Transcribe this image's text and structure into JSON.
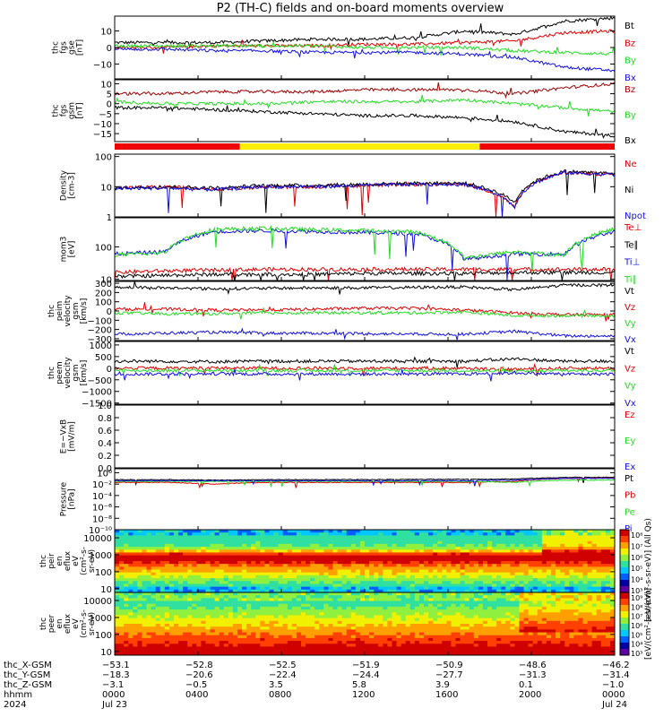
{
  "title": "P2 (TH-C) fields and on-board moments overview",
  "colors": {
    "black": "#000000",
    "red": "#e00000",
    "green": "#22dd22",
    "blue": "#1010e0",
    "darkred": "#a00000",
    "yellow": "#ffee00",
    "barred": "#ee0000"
  },
  "chart_data": [
    {
      "type": "line",
      "ylabel": [
        "thc",
        "fgs",
        "gse",
        "[nT]"
      ],
      "yticks": [
        {
          "value": 10,
          "label": "10"
        },
        {
          "value": 0,
          "label": "0"
        },
        {
          "value": -10,
          "label": "−10"
        }
      ],
      "ylim": [
        -19,
        19
      ],
      "series": [
        {
          "name": "Bt",
          "color": "black",
          "values": [
            3,
            3,
            3,
            4,
            5,
            5,
            6,
            10,
            8,
            16,
            18
          ]
        },
        {
          "name": "Bz",
          "color": "red",
          "values": [
            0,
            0,
            1,
            1,
            1,
            2,
            2,
            3,
            4,
            9,
            10
          ]
        },
        {
          "name": "By",
          "color": "green",
          "values": [
            1,
            1,
            1,
            1,
            1,
            0,
            0,
            0,
            -2,
            -3,
            -4
          ]
        },
        {
          "name": "Bx",
          "color": "blue",
          "values": [
            -1,
            -1,
            -2,
            -2,
            -3,
            -3,
            -3,
            -4,
            -6,
            -12,
            -14
          ]
        }
      ]
    },
    {
      "type": "line",
      "ylabel": [
        "thc",
        "fgs",
        "gsm",
        "[nT]"
      ],
      "yticks": [
        {
          "value": 10,
          "label": "10"
        },
        {
          "value": 5,
          "label": "5"
        },
        {
          "value": 0,
          "label": "0"
        },
        {
          "value": -5,
          "label": "−5"
        },
        {
          "value": -10,
          "label": "−10"
        },
        {
          "value": -15,
          "label": "−15"
        }
      ],
      "ylim": [
        -19,
        12
      ],
      "series": [
        {
          "name": "Bz",
          "color": "darkred",
          "values": [
            5,
            5,
            6,
            6,
            6,
            7,
            7,
            7,
            5,
            8,
            10
          ]
        },
        {
          "name": "By",
          "color": "green",
          "values": [
            1,
            0,
            0,
            0,
            1,
            1,
            1,
            2,
            0,
            -2,
            -4
          ]
        },
        {
          "name": "Bx",
          "color": "black",
          "values": [
            -2,
            -2,
            -3,
            -4,
            -5,
            -6,
            -6,
            -7,
            -9,
            -14,
            -16
          ]
        }
      ]
    },
    {
      "type": "line",
      "scale": "log",
      "ylabel": [
        "Density",
        "[cm-3]"
      ],
      "yticks": [
        {
          "value": 100,
          "label": "100"
        },
        {
          "value": 10,
          "label": "10"
        },
        {
          "value": 1,
          "label": "1"
        }
      ],
      "ylim": [
        1,
        120
      ],
      "series": [
        {
          "name": "Ne",
          "color": "red",
          "values": [
            9,
            10,
            8,
            10,
            10,
            11,
            12,
            12,
            2,
            30,
            25
          ]
        },
        {
          "name": "Ni",
          "color": "black",
          "values": [
            9,
            10,
            9,
            11,
            11,
            12,
            13,
            13,
            3,
            32,
            27
          ]
        },
        {
          "name": "Npot",
          "color": "blue",
          "values": [
            9,
            9,
            8,
            10,
            10,
            11,
            12,
            12,
            2,
            29,
            25
          ]
        }
      ]
    },
    {
      "type": "line",
      "scale": "log",
      "ylabel": [
        "mom3",
        "[eV]"
      ],
      "yticks": [
        {
          "value": 100,
          "label": "100"
        },
        {
          "value": 10,
          "label": "10"
        }
      ],
      "ylim": [
        9,
        800
      ],
      "series": [
        {
          "name": "Te⊥",
          "color": "red",
          "values": [
            16,
            18,
            19,
            20,
            20,
            20,
            20,
            20,
            20,
            20,
            20
          ]
        },
        {
          "name": "Te∥",
          "color": "black",
          "values": [
            12,
            13,
            14,
            14,
            14,
            15,
            15,
            15,
            16,
            16,
            16
          ]
        },
        {
          "name": "Ti⊥",
          "color": "blue",
          "values": [
            60,
            70,
            300,
            320,
            300,
            280,
            260,
            40,
            60,
            60,
            300
          ]
        },
        {
          "name": "Ti∥",
          "color": "green",
          "values": [
            55,
            65,
            350,
            380,
            340,
            320,
            290,
            45,
            70,
            55,
            360
          ]
        }
      ]
    },
    {
      "type": "line",
      "ylabel": [
        "thc",
        "peim",
        "velocity",
        "gsm",
        "[km/s]"
      ],
      "yticks": [
        {
          "value": 300,
          "label": "300"
        },
        {
          "value": 200,
          "label": "200"
        },
        {
          "value": 100,
          "label": "100"
        },
        {
          "value": 0,
          "label": "0"
        },
        {
          "value": -100,
          "label": "−100"
        },
        {
          "value": -200,
          "label": "−200"
        },
        {
          "value": -300,
          "label": "−300"
        }
      ],
      "ylim": [
        -320,
        320
      ],
      "series": [
        {
          "name": "Vt",
          "color": "black",
          "values": [
            260,
            250,
            240,
            245,
            250,
            250,
            255,
            260,
            230,
            280,
            280
          ]
        },
        {
          "name": "Vz",
          "color": "red",
          "values": [
            20,
            20,
            10,
            10,
            20,
            30,
            30,
            10,
            -20,
            -40,
            -40
          ]
        },
        {
          "name": "Vy",
          "color": "green",
          "values": [
            -20,
            -30,
            -30,
            -20,
            -20,
            -20,
            -20,
            -10,
            -50,
            -50,
            -50
          ]
        },
        {
          "name": "Vx",
          "color": "blue",
          "values": [
            -250,
            -240,
            -230,
            -240,
            -240,
            -245,
            -250,
            -250,
            -220,
            -270,
            -270
          ]
        }
      ]
    },
    {
      "type": "line",
      "ylabel": [
        "thc",
        "peem",
        "velocity",
        "gsm",
        "[km/s]"
      ],
      "yticks": [
        {
          "value": 1000,
          "label": "1000"
        },
        {
          "value": 500,
          "label": "500"
        },
        {
          "value": 0,
          "label": "0"
        },
        {
          "value": -500,
          "label": "−500"
        },
        {
          "value": -1000,
          "label": "−1000"
        },
        {
          "value": -1500,
          "label": "−1500"
        }
      ],
      "ylim": [
        -1550,
        1150
      ],
      "series": [
        {
          "name": "Vt",
          "color": "black",
          "values": [
            300,
            300,
            280,
            300,
            300,
            300,
            300,
            300,
            400,
            300,
            300
          ]
        },
        {
          "name": "Vz",
          "color": "red",
          "values": [
            0,
            0,
            10,
            0,
            0,
            0,
            0,
            0,
            -50,
            0,
            0
          ]
        },
        {
          "name": "Vy",
          "color": "green",
          "values": [
            -100,
            -100,
            -100,
            -100,
            -100,
            -100,
            -100,
            -100,
            -150,
            -100,
            -100
          ]
        },
        {
          "name": "Vx",
          "color": "blue",
          "values": [
            -250,
            -250,
            -240,
            -250,
            -250,
            -250,
            -250,
            -250,
            -200,
            -250,
            -250
          ]
        }
      ]
    },
    {
      "type": "line",
      "ylabel": [
        "E=−VxB",
        "[mV/m]"
      ],
      "yticks": [
        {
          "value": 1.0,
          "label": "1.0"
        },
        {
          "value": 0.8,
          "label": "0.8"
        },
        {
          "value": 0.6,
          "label": "0.6"
        },
        {
          "value": 0.4,
          "label": "0.4"
        },
        {
          "value": 0.2,
          "label": "0.2"
        },
        {
          "value": 0.0,
          "label": "0.0"
        }
      ],
      "ylim": [
        0,
        1
      ],
      "series": [
        {
          "name": "Ez",
          "color": "red",
          "values": []
        },
        {
          "name": "Ey",
          "color": "green",
          "values": []
        },
        {
          "name": "Ex",
          "color": "blue",
          "values": []
        }
      ]
    },
    {
      "type": "line",
      "scale": "log",
      "ylabel": [
        "Pressure",
        "[nPa]"
      ],
      "yticks": [
        {
          "value": 1,
          "label": "10⁰"
        },
        {
          "value": 0.01,
          "label": "10⁻²"
        },
        {
          "value": 0.0001,
          "label": "10⁻⁴"
        },
        {
          "value": 1e-06,
          "label": "10⁻⁶"
        },
        {
          "value": 1e-08,
          "label": "10⁻⁸"
        },
        {
          "value": 1e-10,
          "label": "10⁻¹⁰"
        }
      ],
      "ylim": [
        1e-10,
        5
      ],
      "series": [
        {
          "name": "Pt",
          "color": "black",
          "values": [
            0.06,
            0.06,
            0.05,
            0.06,
            0.06,
            0.06,
            0.07,
            0.07,
            0.08,
            0.15,
            0.16
          ]
        },
        {
          "name": "Pb",
          "color": "red",
          "values": [
            0.02,
            0.02,
            0.01,
            0.02,
            0.02,
            0.02,
            0.02,
            0.02,
            0.03,
            0.1,
            0.12
          ]
        },
        {
          "name": "Pe",
          "color": "green",
          "values": [
            0.03,
            0.03,
            0.03,
            0.03,
            0.03,
            0.03,
            0.03,
            0.03,
            0.02,
            0.05,
            0.05
          ]
        },
        {
          "name": "Pi",
          "color": "blue",
          "values": [
            0.04,
            0.04,
            0.04,
            0.04,
            0.04,
            0.04,
            0.04,
            0.04,
            0.05,
            0.1,
            0.1
          ]
        }
      ]
    },
    {
      "type": "heatmap",
      "ylabel": [
        "thc",
        "peir",
        "en",
        "eflux",
        "eV",
        "(cm²-s-",
        "sr-eV)"
      ],
      "yticks": [
        {
          "value": 10000,
          "label": "10000"
        },
        {
          "value": 1000,
          "label": "1000"
        },
        {
          "value": 100,
          "label": "100"
        },
        {
          "value": 10,
          "label": "10"
        }
      ],
      "ylim": [
        6,
        30000
      ],
      "colorbar_label": "[eV/(cm²-s-sr-eV)] (All Qs)",
      "colorbar_ticks": [
        "10⁸",
        "10⁷",
        "10⁶",
        "10⁵",
        "10⁴",
        "10³"
      ]
    },
    {
      "type": "heatmap",
      "ylabel": [
        "thc",
        "peer",
        "en",
        "eflux",
        "eV",
        "(cm²-s-",
        "sr-eV)"
      ],
      "yticks": [
        {
          "value": 10000,
          "label": "10000"
        },
        {
          "value": 1000,
          "label": "1000"
        },
        {
          "value": 100,
          "label": "100"
        },
        {
          "value": 10,
          "label": "10"
        }
      ],
      "ylim": [
        6,
        30000
      ],
      "colorbar_label": "[eV/(cm²-s-sr-eV)]",
      "colorbar_ticks": [
        "10⁹",
        "10⁸",
        "10⁷",
        "10⁶",
        "10⁵",
        "10⁴",
        "10³"
      ]
    }
  ],
  "mode_bar": [
    {
      "start": 0,
      "end": 0.25,
      "color": "barred"
    },
    {
      "start": 0.25,
      "end": 0.73,
      "color": "yellow"
    },
    {
      "start": 0.73,
      "end": 1.0,
      "color": "barred"
    }
  ],
  "time_axis": {
    "row_labels": [
      "thc_X-GSM",
      "thc_Y-GSM",
      "thc_Z-GSM",
      "hhmm",
      "2024"
    ],
    "columns": [
      {
        "pos": 0.0,
        "values": [
          "−53.1",
          "−18.3",
          "−3.1",
          "0000",
          "Jul 23"
        ]
      },
      {
        "pos": 0.1667,
        "values": [
          "−52.8",
          "−20.6",
          "−0.5",
          "0400",
          ""
        ]
      },
      {
        "pos": 0.3333,
        "values": [
          "−52.5",
          "−22.4",
          "3.5",
          "0800",
          ""
        ]
      },
      {
        "pos": 0.5,
        "values": [
          "−51.9",
          "−24.4",
          "5.8",
          "1200",
          ""
        ]
      },
      {
        "pos": 0.6667,
        "values": [
          "−50.9",
          "−27.7",
          "3.9",
          "1600",
          ""
        ]
      },
      {
        "pos": 0.8333,
        "values": [
          "−48.6",
          "−31.3",
          "0.1",
          "2000",
          ""
        ]
      },
      {
        "pos": 1.0,
        "values": [
          "−46.2",
          "−31.4",
          "−1.0",
          "0000",
          "Jul 24"
        ]
      }
    ]
  }
}
